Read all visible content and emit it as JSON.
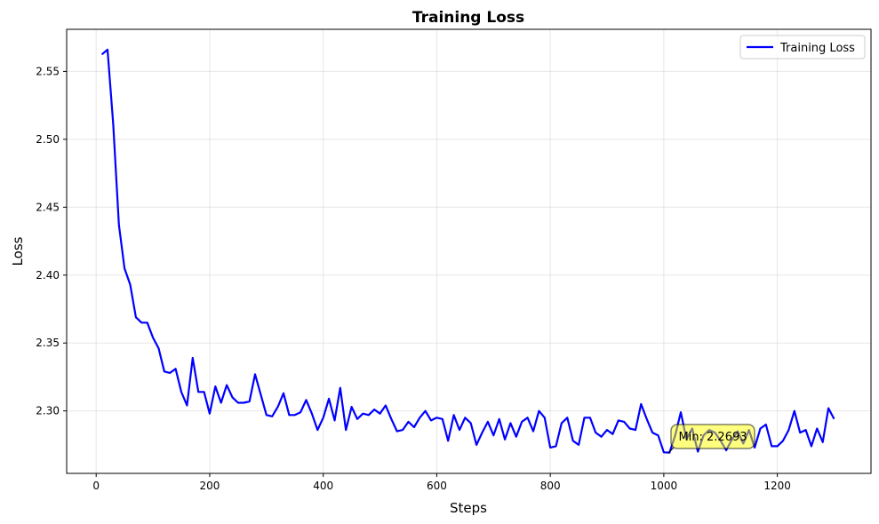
{
  "chart_data": {
    "type": "line",
    "title": "Training Loss",
    "xlabel": "Steps",
    "ylabel": "Loss",
    "xlim": [
      -52,
      1365
    ],
    "ylim": [
      2.254,
      2.581
    ],
    "xticks": [
      0,
      200,
      400,
      600,
      800,
      1000,
      1200
    ],
    "yticks": [
      2.3,
      2.35,
      2.4,
      2.45,
      2.5,
      2.55
    ],
    "grid": true,
    "legend_placement": "top-right",
    "series": [
      {
        "name": "Training Loss",
        "color": "#0000ff",
        "x": [
          10,
          20,
          30,
          40,
          50,
          60,
          70,
          80,
          90,
          100,
          110,
          120,
          130,
          140,
          150,
          160,
          170,
          180,
          190,
          200,
          210,
          220,
          230,
          240,
          250,
          260,
          270,
          280,
          290,
          300,
          310,
          320,
          330,
          340,
          350,
          360,
          370,
          380,
          390,
          400,
          410,
          420,
          430,
          440,
          450,
          460,
          470,
          480,
          490,
          500,
          510,
          520,
          530,
          540,
          550,
          560,
          570,
          580,
          590,
          600,
          610,
          620,
          630,
          640,
          650,
          660,
          670,
          680,
          690,
          700,
          710,
          720,
          730,
          740,
          750,
          760,
          770,
          780,
          790,
          800,
          810,
          820,
          830,
          840,
          850,
          860,
          870,
          880,
          890,
          900,
          910,
          920,
          930,
          940,
          950,
          960,
          970,
          980,
          990,
          1000,
          1010,
          1020,
          1030,
          1040,
          1050,
          1060,
          1070,
          1080,
          1090,
          1100,
          1110,
          1120,
          1130,
          1140,
          1150,
          1160,
          1170,
          1180,
          1190,
          1200,
          1210,
          1220,
          1230,
          1240,
          1250,
          1260,
          1270,
          1280,
          1290,
          1300
        ],
        "y": [
          2.5625,
          2.566,
          2.511,
          2.437,
          2.405,
          2.393,
          2.369,
          2.365,
          2.365,
          2.354,
          2.346,
          2.329,
          2.328,
          2.331,
          2.314,
          2.304,
          2.339,
          2.314,
          2.314,
          2.298,
          2.318,
          2.306,
          2.319,
          2.31,
          2.306,
          2.306,
          2.307,
          2.327,
          2.312,
          2.297,
          2.296,
          2.303,
          2.313,
          2.297,
          2.297,
          2.299,
          2.308,
          2.298,
          2.286,
          2.295,
          2.309,
          2.293,
          2.317,
          2.286,
          2.303,
          2.294,
          2.298,
          2.297,
          2.301,
          2.298,
          2.304,
          2.294,
          2.285,
          2.286,
          2.292,
          2.288,
          2.295,
          2.3,
          2.293,
          2.295,
          2.294,
          2.278,
          2.297,
          2.286,
          2.295,
          2.291,
          2.275,
          2.284,
          2.292,
          2.282,
          2.294,
          2.279,
          2.291,
          2.281,
          2.292,
          2.295,
          2.285,
          2.3,
          2.295,
          2.273,
          2.274,
          2.291,
          2.295,
          2.278,
          2.275,
          2.295,
          2.295,
          2.284,
          2.281,
          2.286,
          2.283,
          2.293,
          2.292,
          2.287,
          2.286,
          2.305,
          2.294,
          2.284,
          2.282,
          2.2695,
          2.2693,
          2.282,
          2.299,
          2.279,
          2.287,
          2.27,
          2.282,
          2.286,
          2.284,
          2.278,
          2.271,
          2.279,
          2.285,
          2.276,
          2.286,
          2.273,
          2.287,
          2.29,
          2.274,
          2.274,
          2.278,
          2.286,
          2.3,
          2.284,
          2.286,
          2.274,
          2.287,
          2.277,
          2.302,
          2.294
        ]
      }
    ],
    "annotations": [
      {
        "text": "Min: 2.2693",
        "x": 1010,
        "y": 2.2693,
        "box_color": "#ffff00"
      }
    ]
  }
}
